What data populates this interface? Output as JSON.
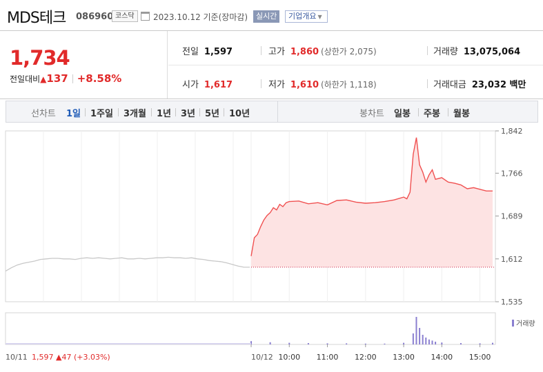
{
  "header": {
    "name": "MDS테크",
    "code": "086960",
    "market": "코스닥",
    "date": "2023.10.12  기준(장마감)",
    "realtime_label": "실시간",
    "company_label": "기업개요"
  },
  "summary": {
    "price": "1,734",
    "change_label": "전일대비",
    "change_value": "137",
    "change_percent": "+8.58%",
    "prev_close_label": "전일",
    "prev_close": "1,597",
    "open_label": "시가",
    "open": "1,617",
    "high_label": "고가",
    "high": "1,860",
    "upper_limit": "(상한가 2,075)",
    "low_label": "저가",
    "low": "1,610",
    "lower_limit": "(하한가 1,118)",
    "volume_label": "거래량",
    "volume": "13,075,064",
    "amount_label": "거래대금",
    "amount": "23,032 백만"
  },
  "tabs": {
    "line_label": "선차트",
    "line_periods": [
      "1일",
      "1주일",
      "3개월",
      "1년",
      "3년",
      "5년",
      "10년"
    ],
    "active_period": "1일",
    "candle_label": "봉차트",
    "candle_periods": [
      "일봉",
      "주봉",
      "월봉"
    ]
  },
  "colors": {
    "up": "#e12a2a",
    "line_today": "#f05050",
    "fill_today": "#fde3e3",
    "line_prev": "#c8c8c8",
    "volume": "#8a7fd0",
    "active_tab": "#1e5ab6"
  },
  "chart_data": {
    "type": "line",
    "y_ticks": [
      "1,842",
      "1,766",
      "1,689",
      "1,612",
      "1,535"
    ],
    "ylim": [
      1535,
      1842
    ],
    "reference_line": 1597,
    "prev_day": {
      "label": "10/11",
      "summary_close": "1,597",
      "summary_change": "47",
      "summary_pct": "(+3.03%)",
      "values": [
        1590,
        1596,
        1601,
        1604,
        1606,
        1608,
        1611,
        1612,
        1613,
        1613,
        1612,
        1612,
        1611,
        1613,
        1614,
        1613,
        1614,
        1613,
        1612,
        1613,
        1614,
        1612,
        1612,
        1613,
        1612,
        1613,
        1614,
        1614,
        1615,
        1614,
        1614,
        1613,
        1614,
        1612,
        1611,
        1609,
        1608,
        1607,
        1605,
        1602,
        1599,
        1597,
        1597
      ]
    },
    "today": {
      "label": "10/12",
      "x_ticks": [
        "10:00",
        "11:00",
        "12:00",
        "13:00",
        "14:00",
        "15:00"
      ],
      "series_times": [
        9.0,
        9.083,
        9.167,
        9.25,
        9.333,
        9.417,
        9.5,
        9.583,
        9.667,
        9.75,
        9.833,
        9.917,
        10.0,
        10.25,
        10.5,
        10.75,
        11.0,
        11.25,
        11.5,
        11.75,
        12.0,
        12.25,
        12.5,
        12.75,
        13.0,
        13.083,
        13.167,
        13.25,
        13.333,
        13.417,
        13.5,
        13.583,
        13.667,
        13.75,
        13.833,
        14.0,
        14.167,
        14.333,
        14.5,
        14.667,
        14.833,
        15.0,
        15.167,
        15.333
      ],
      "series_values": [
        1617,
        1650,
        1656,
        1670,
        1682,
        1690,
        1695,
        1704,
        1700,
        1710,
        1706,
        1713,
        1715,
        1716,
        1711,
        1713,
        1709,
        1717,
        1718,
        1714,
        1712,
        1713,
        1715,
        1718,
        1723,
        1720,
        1732,
        1800,
        1830,
        1781,
        1768,
        1750,
        1763,
        1772,
        1755,
        1758,
        1750,
        1748,
        1745,
        1738,
        1740,
        1737,
        1734,
        1734
      ]
    },
    "volume": {
      "label": "거래량",
      "today_times": [
        9.0,
        9.5,
        10.0,
        10.5,
        11.0,
        11.5,
        12.0,
        12.5,
        13.0,
        13.25,
        13.333,
        13.417,
        13.5,
        13.583,
        13.667,
        13.75,
        13.833,
        14.0,
        14.5,
        15.0,
        15.333
      ],
      "today_values": [
        12,
        8,
        6,
        5,
        4,
        4,
        3,
        3,
        6,
        40,
        100,
        60,
        35,
        25,
        18,
        14,
        10,
        7,
        5,
        4,
        6
      ]
    }
  }
}
